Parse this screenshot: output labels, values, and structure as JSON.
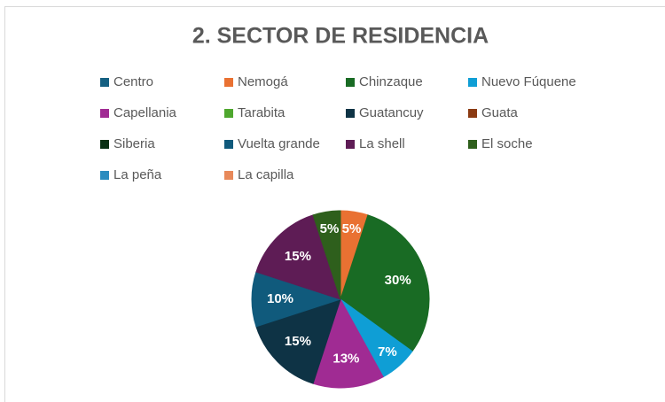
{
  "chart_data": {
    "type": "pie",
    "title": "2. SECTOR DE RESIDENCIA",
    "categories": [
      "Centro",
      "Nemogá",
      "Chinzaque",
      "Nuevo Fúquene",
      "Capellania",
      "Tarabita",
      "Guatancuy",
      "Guata",
      "Siberia",
      "Vuelta grande",
      "La shell",
      "El soche",
      "La peña",
      "La capilla"
    ],
    "values": [
      0,
      5,
      30,
      7,
      13,
      0,
      15,
      0,
      0,
      10,
      15,
      5,
      0,
      0
    ],
    "value_labels": [
      null,
      "5%",
      "30%",
      "7%",
      "13%",
      null,
      "15%",
      null,
      null,
      "10%",
      "15%",
      "5%",
      null,
      null
    ],
    "colors": [
      "#156082",
      "#e97132",
      "#196b24",
      "#0f9ed5",
      "#a02b93",
      "#4ea72e",
      "#0e3345",
      "#8b3a12",
      "#0a3014",
      "#105a7c",
      "#5e1c55",
      "#2e5f1c",
      "#2c8cbf",
      "#e8895a"
    ],
    "legend": "top"
  }
}
